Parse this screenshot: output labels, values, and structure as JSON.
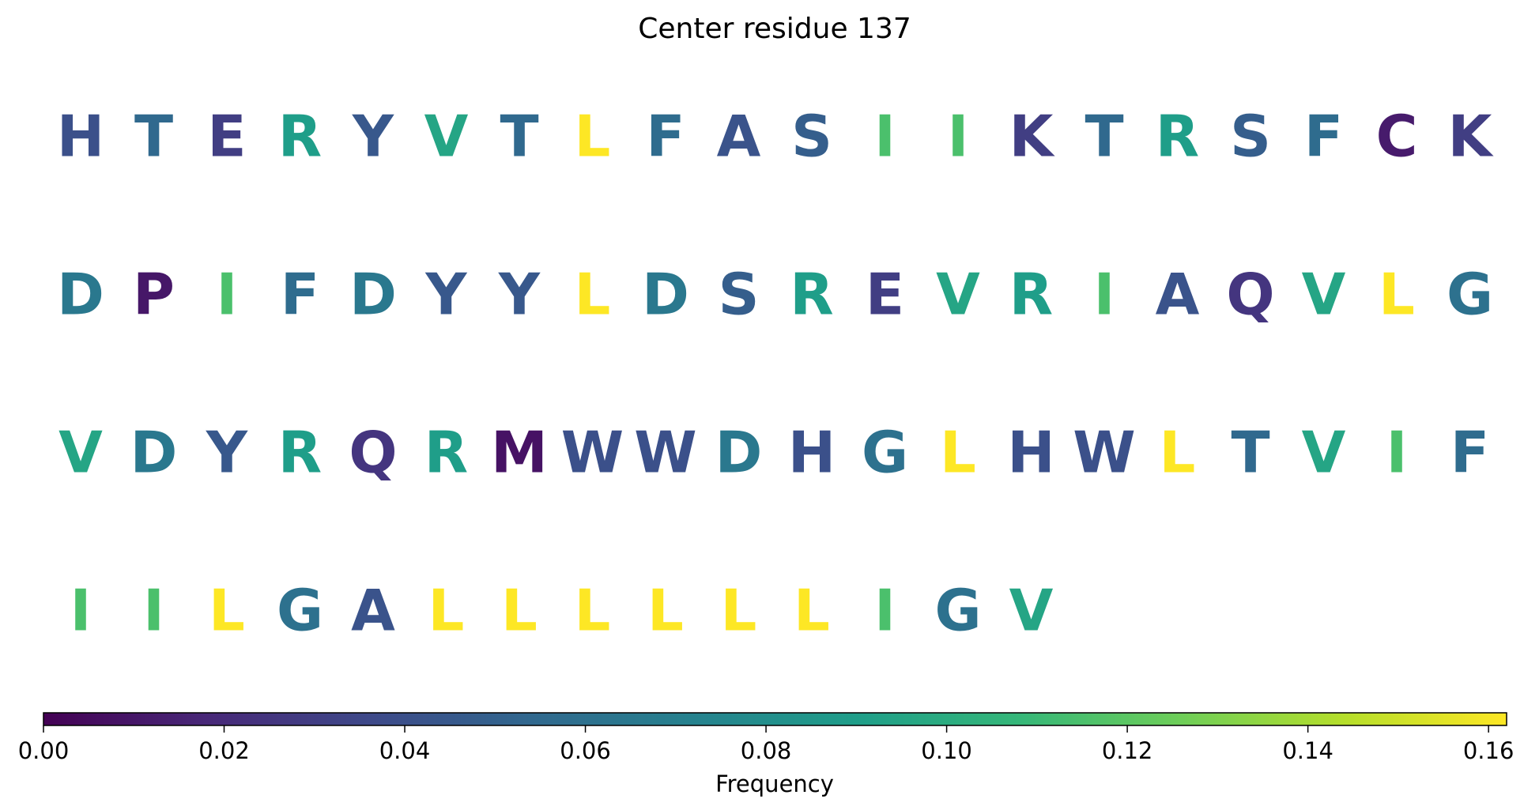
{
  "chart_data": {
    "type": "heatmap",
    "title": "Center residue 137",
    "colormap": "viridis",
    "colormap_stops": [
      "#440154",
      "#482878",
      "#3e4989",
      "#31688e",
      "#26828e",
      "#1f9e89",
      "#35b779",
      "#6ece58",
      "#b5de2b",
      "#fde725"
    ],
    "grid": false,
    "residues_per_row": 20,
    "residues": [
      {
        "letter": "H",
        "value": 0.04
      },
      {
        "letter": "T",
        "value": 0.055
      },
      {
        "letter": "E",
        "value": 0.03
      },
      {
        "letter": "R",
        "value": 0.09
      },
      {
        "letter": "Y",
        "value": 0.045
      },
      {
        "letter": "V",
        "value": 0.095
      },
      {
        "letter": "T",
        "value": 0.055
      },
      {
        "letter": "L",
        "value": 0.162
      },
      {
        "letter": "F",
        "value": 0.057
      },
      {
        "letter": "A",
        "value": 0.042
      },
      {
        "letter": "S",
        "value": 0.048
      },
      {
        "letter": "I",
        "value": 0.115
      },
      {
        "letter": "I",
        "value": 0.115
      },
      {
        "letter": "K",
        "value": 0.03
      },
      {
        "letter": "T",
        "value": 0.055
      },
      {
        "letter": "R",
        "value": 0.09
      },
      {
        "letter": "S",
        "value": 0.048
      },
      {
        "letter": "F",
        "value": 0.057
      },
      {
        "letter": "C",
        "value": 0.012
      },
      {
        "letter": "K",
        "value": 0.03
      },
      {
        "letter": "D",
        "value": 0.065
      },
      {
        "letter": "P",
        "value": 0.01
      },
      {
        "letter": "I",
        "value": 0.115
      },
      {
        "letter": "F",
        "value": 0.057
      },
      {
        "letter": "D",
        "value": 0.065
      },
      {
        "letter": "Y",
        "value": 0.045
      },
      {
        "letter": "Y",
        "value": 0.045
      },
      {
        "letter": "L",
        "value": 0.162
      },
      {
        "letter": "D",
        "value": 0.065
      },
      {
        "letter": "S",
        "value": 0.048
      },
      {
        "letter": "R",
        "value": 0.09
      },
      {
        "letter": "E",
        "value": 0.03
      },
      {
        "letter": "V",
        "value": 0.095
      },
      {
        "letter": "R",
        "value": 0.09
      },
      {
        "letter": "I",
        "value": 0.115
      },
      {
        "letter": "A",
        "value": 0.042
      },
      {
        "letter": "Q",
        "value": 0.025
      },
      {
        "letter": "V",
        "value": 0.095
      },
      {
        "letter": "L",
        "value": 0.162
      },
      {
        "letter": "G",
        "value": 0.06
      },
      {
        "letter": "V",
        "value": 0.095
      },
      {
        "letter": "D",
        "value": 0.065
      },
      {
        "letter": "Y",
        "value": 0.045
      },
      {
        "letter": "R",
        "value": 0.09
      },
      {
        "letter": "Q",
        "value": 0.025
      },
      {
        "letter": "R",
        "value": 0.09
      },
      {
        "letter": "M",
        "value": 0.008
      },
      {
        "letter": "W",
        "value": 0.04
      },
      {
        "letter": "W",
        "value": 0.04
      },
      {
        "letter": "D",
        "value": 0.065
      },
      {
        "letter": "H",
        "value": 0.04
      },
      {
        "letter": "G",
        "value": 0.06
      },
      {
        "letter": "L",
        "value": 0.162
      },
      {
        "letter": "H",
        "value": 0.04
      },
      {
        "letter": "W",
        "value": 0.04
      },
      {
        "letter": "L",
        "value": 0.162
      },
      {
        "letter": "T",
        "value": 0.055
      },
      {
        "letter": "V",
        "value": 0.095
      },
      {
        "letter": "I",
        "value": 0.115
      },
      {
        "letter": "F",
        "value": 0.057
      },
      {
        "letter": "I",
        "value": 0.115
      },
      {
        "letter": "I",
        "value": 0.115
      },
      {
        "letter": "L",
        "value": 0.162
      },
      {
        "letter": "G",
        "value": 0.06
      },
      {
        "letter": "A",
        "value": 0.042
      },
      {
        "letter": "L",
        "value": 0.162
      },
      {
        "letter": "L",
        "value": 0.162
      },
      {
        "letter": "L",
        "value": 0.162
      },
      {
        "letter": "L",
        "value": 0.162
      },
      {
        "letter": "L",
        "value": 0.162
      },
      {
        "letter": "L",
        "value": 0.162
      },
      {
        "letter": "I",
        "value": 0.115
      },
      {
        "letter": "G",
        "value": 0.06
      },
      {
        "letter": "V",
        "value": 0.095
      }
    ],
    "colorbar": {
      "label": "Frequency",
      "range": [
        0,
        0.162
      ],
      "ticks": [
        0.0,
        0.02,
        0.04,
        0.06,
        0.08,
        0.1,
        0.12,
        0.14,
        0.16
      ],
      "tick_labels": [
        "0.00",
        "0.02",
        "0.04",
        "0.06",
        "0.08",
        "0.10",
        "0.12",
        "0.14",
        "0.16"
      ],
      "orientation": "horizontal"
    }
  }
}
